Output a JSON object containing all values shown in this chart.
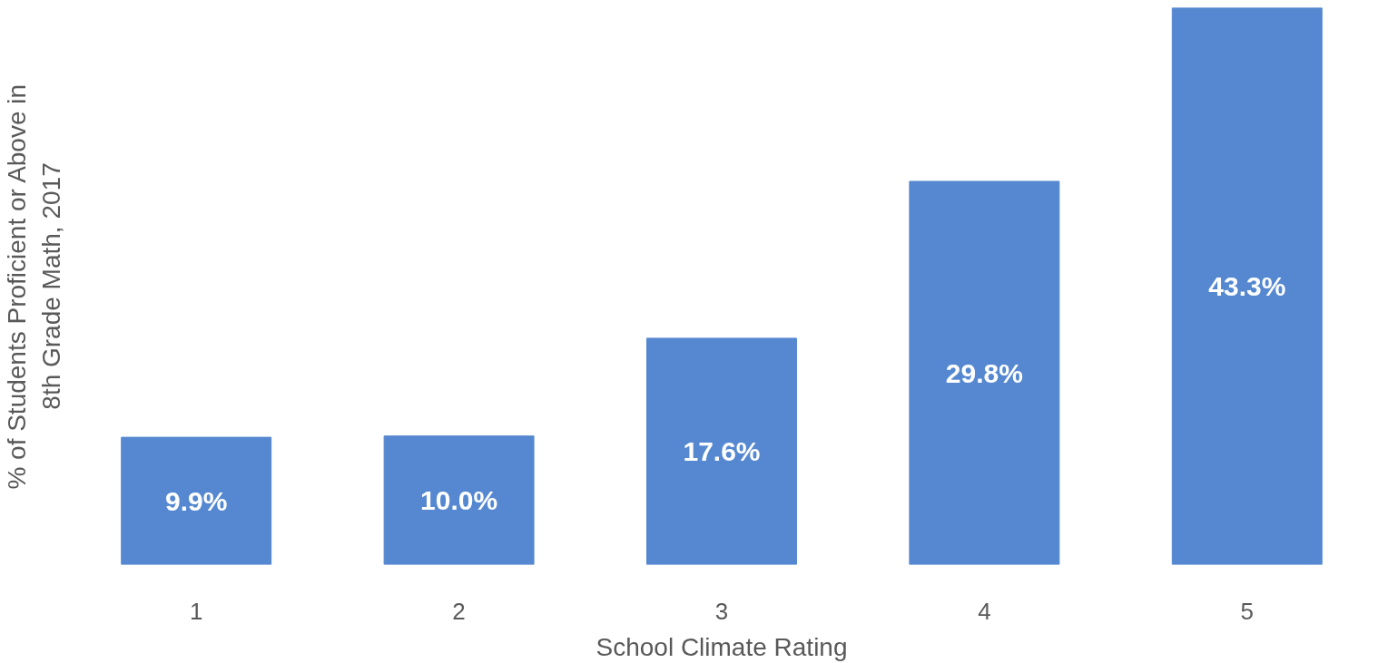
{
  "chart_data": {
    "type": "bar",
    "xlabel": "School Climate Rating",
    "ylabel": "% of Students Proficient or Above in\n8th Grade Math, 2017",
    "categories": [
      "1",
      "2",
      "3",
      "4",
      "5"
    ],
    "values": [
      9.9,
      10.0,
      17.6,
      29.8,
      43.3
    ],
    "value_labels": [
      "9.9%",
      "10.0%",
      "17.6%",
      "29.8%",
      "43.3%"
    ],
    "color": "#5588d0",
    "tick_labels": "x"
  }
}
